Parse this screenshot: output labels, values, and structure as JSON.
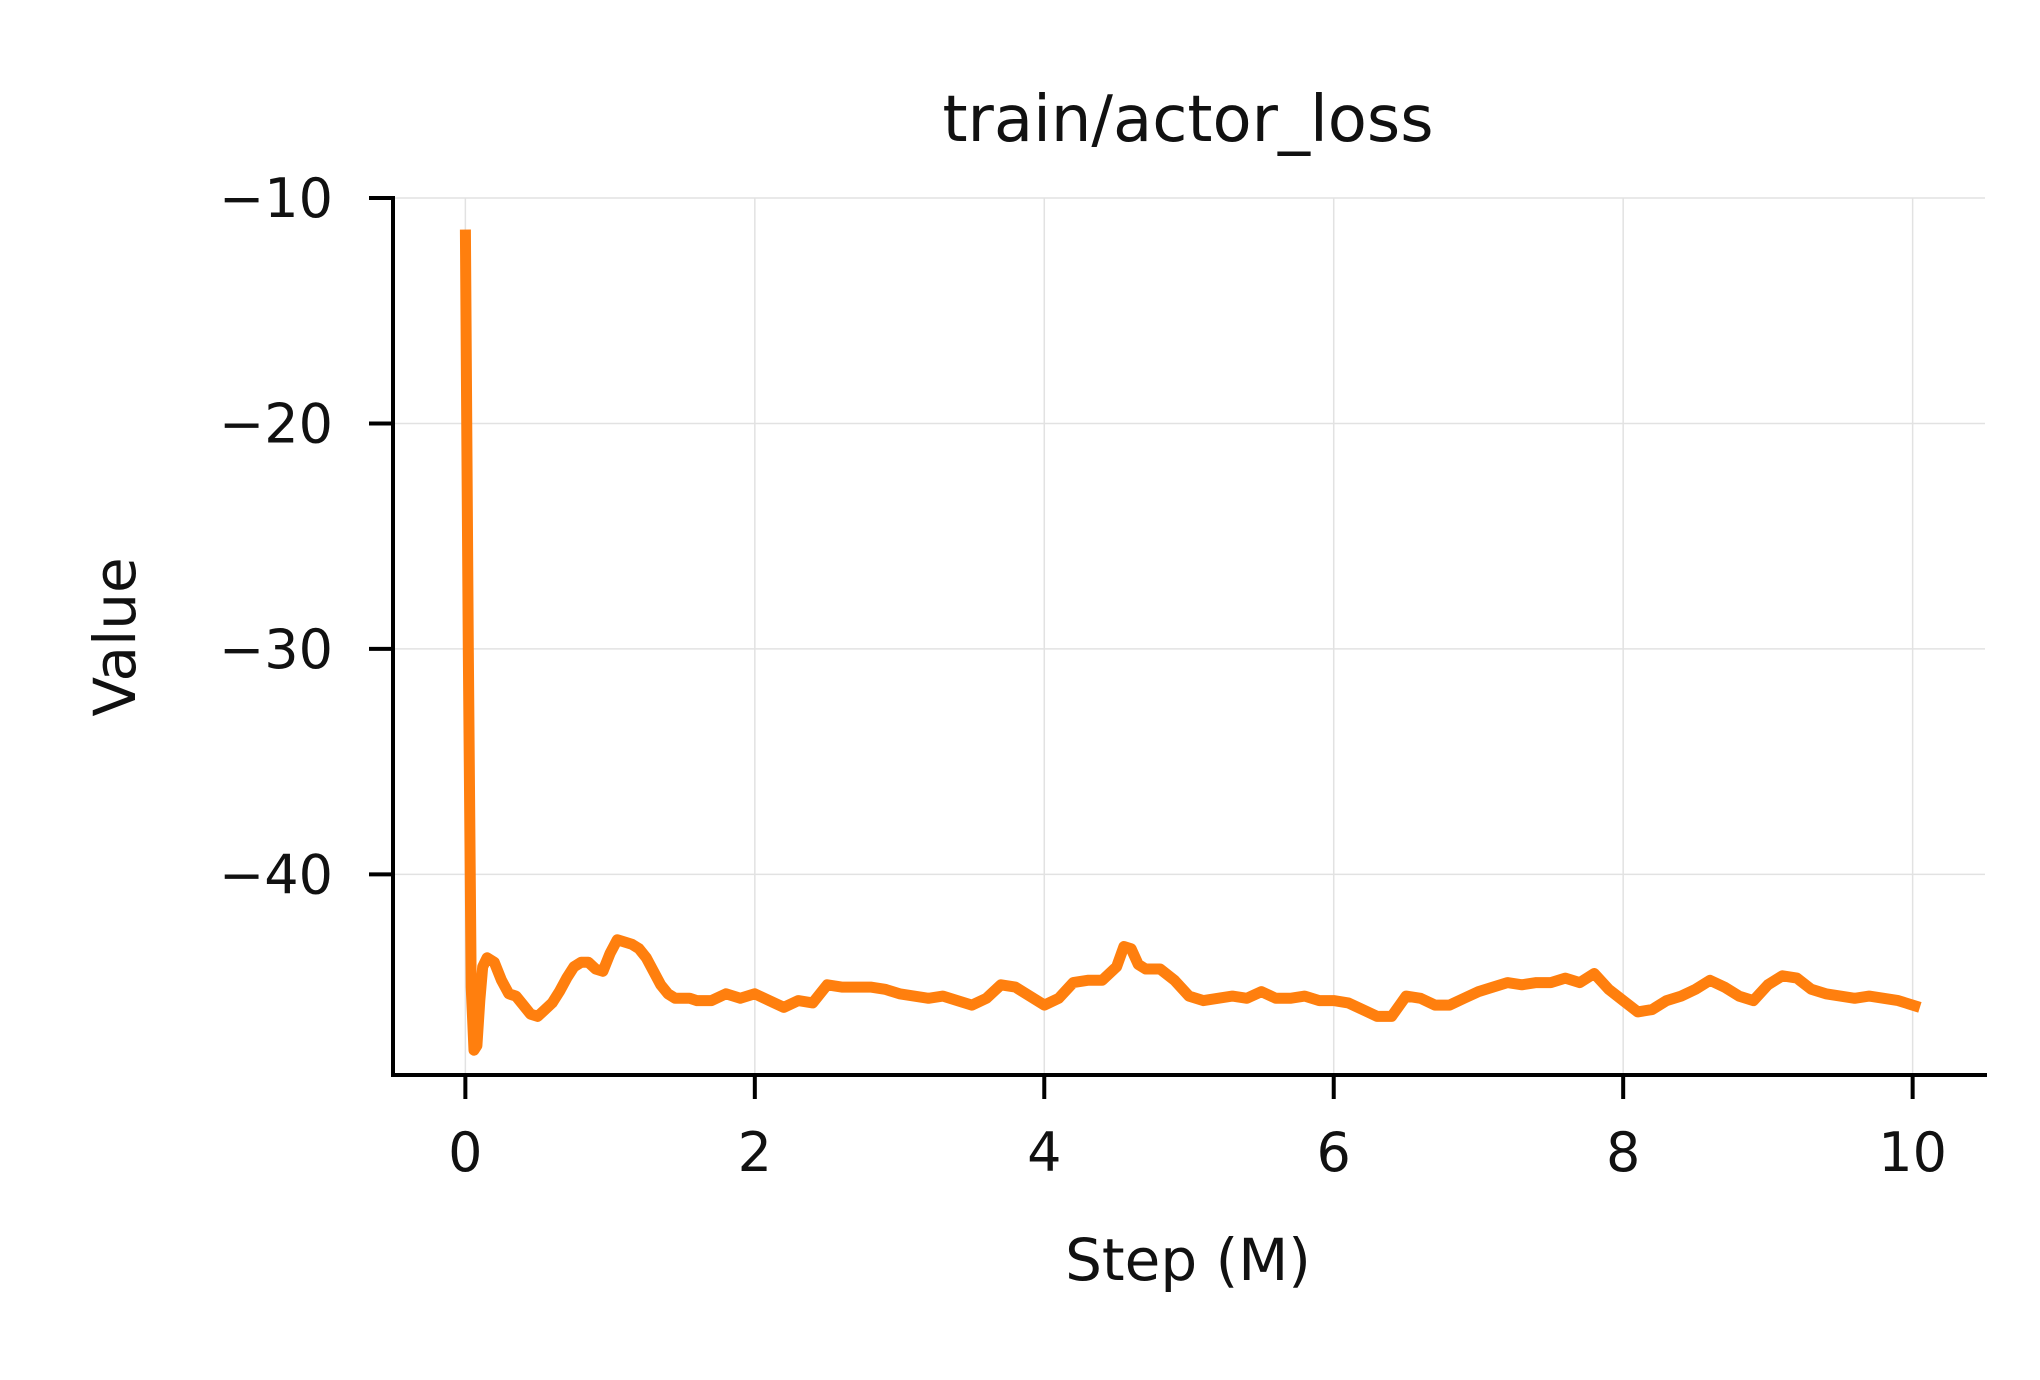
{
  "chart_data": {
    "type": "line",
    "title": "train/actor_loss",
    "xlabel": "Step (M)",
    "ylabel": "Value",
    "xlim": [
      -0.5,
      10.5
    ],
    "ylim": [
      -48.9,
      -10
    ],
    "xticks": [
      0,
      2,
      4,
      6,
      8,
      10
    ],
    "xtick_labels": [
      "0",
      "2",
      "4",
      "6",
      "8",
      "10"
    ],
    "yticks": [
      -10,
      -20,
      -30,
      -40
    ],
    "ytick_labels": [
      "−10",
      "−20",
      "−30",
      "−40"
    ],
    "grid": true,
    "legend": "none",
    "series": [
      {
        "color": "#ff7f0e",
        "x": [
          0.0,
          0.02,
          0.04,
          0.06,
          0.08,
          0.1,
          0.12,
          0.15,
          0.2,
          0.25,
          0.3,
          0.35,
          0.4,
          0.45,
          0.5,
          0.55,
          0.6,
          0.65,
          0.7,
          0.75,
          0.8,
          0.85,
          0.9,
          0.95,
          1.0,
          1.05,
          1.1,
          1.15,
          1.2,
          1.25,
          1.3,
          1.35,
          1.4,
          1.45,
          1.5,
          1.55,
          1.6,
          1.7,
          1.8,
          1.9,
          2.0,
          2.1,
          2.2,
          2.3,
          2.4,
          2.5,
          2.6,
          2.7,
          2.8,
          2.9,
          3.0,
          3.1,
          3.2,
          3.3,
          3.4,
          3.5,
          3.6,
          3.7,
          3.8,
          3.9,
          4.0,
          4.1,
          4.2,
          4.3,
          4.4,
          4.5,
          4.55,
          4.6,
          4.65,
          4.7,
          4.8,
          4.9,
          5.0,
          5.1,
          5.2,
          5.3,
          5.4,
          5.5,
          5.6,
          5.7,
          5.8,
          5.9,
          6.0,
          6.1,
          6.2,
          6.3,
          6.4,
          6.5,
          6.6,
          6.7,
          6.8,
          6.9,
          7.0,
          7.1,
          7.2,
          7.3,
          7.4,
          7.5,
          7.6,
          7.7,
          7.8,
          7.9,
          8.0,
          8.1,
          8.2,
          8.3,
          8.4,
          8.5,
          8.6,
          8.7,
          8.8,
          8.9,
          9.0,
          9.1,
          9.2,
          9.3,
          9.4,
          9.5,
          9.6,
          9.7,
          9.8,
          9.9,
          10.0,
          10.05
        ],
        "y": [
          -11.4,
          -30.0,
          -45.0,
          -47.8,
          -47.6,
          -45.6,
          -44.1,
          -43.7,
          -43.9,
          -44.7,
          -45.3,
          -45.4,
          -45.8,
          -46.2,
          -46.3,
          -46.0,
          -45.7,
          -45.2,
          -44.6,
          -44.1,
          -43.9,
          -43.9,
          -44.2,
          -44.3,
          -43.5,
          -42.9,
          -43.0,
          -43.1,
          -43.3,
          -43.7,
          -44.3,
          -44.9,
          -45.3,
          -45.5,
          -45.5,
          -45.5,
          -45.6,
          -45.6,
          -45.3,
          -45.5,
          -45.3,
          -45.6,
          -45.9,
          -45.6,
          -45.7,
          -44.9,
          -45.0,
          -45.0,
          -45.0,
          -45.1,
          -45.3,
          -45.4,
          -45.5,
          -45.4,
          -45.6,
          -45.8,
          -45.5,
          -44.9,
          -45.0,
          -45.4,
          -45.8,
          -45.5,
          -44.8,
          -44.7,
          -44.7,
          -44.1,
          -43.2,
          -43.3,
          -44.0,
          -44.2,
          -44.2,
          -44.7,
          -45.4,
          -45.6,
          -45.5,
          -45.4,
          -45.5,
          -45.2,
          -45.5,
          -45.5,
          -45.4,
          -45.6,
          -45.6,
          -45.7,
          -46.0,
          -46.3,
          -46.3,
          -45.4,
          -45.5,
          -45.8,
          -45.8,
          -45.5,
          -45.2,
          -45.0,
          -44.8,
          -44.9,
          -44.8,
          -44.8,
          -44.6,
          -44.8,
          -44.4,
          -45.1,
          -45.6,
          -46.1,
          -46.0,
          -45.6,
          -45.4,
          -45.1,
          -44.7,
          -45.0,
          -45.4,
          -45.6,
          -44.9,
          -44.5,
          -44.6,
          -45.1,
          -45.3,
          -45.4,
          -45.5,
          -45.4,
          -45.5,
          -45.6,
          -45.8,
          -45.9
        ]
      }
    ]
  }
}
